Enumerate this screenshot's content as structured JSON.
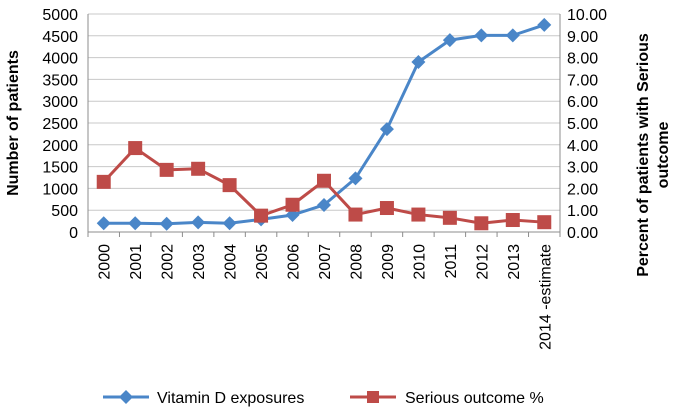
{
  "chart_data": {
    "type": "line",
    "title": "",
    "categories": [
      "2000",
      "2001",
      "2002",
      "2003",
      "2004",
      "2005",
      "2006",
      "2007",
      "2008",
      "2009",
      "2010",
      "2011",
      "2012",
      "2013",
      "2014 -estimate"
    ],
    "series": [
      {
        "name": "Vitamin D exposures",
        "axis": "left",
        "color": "#4a86c8",
        "marker": "diamond",
        "values": [
          200,
          200,
          190,
          220,
          200,
          290,
          390,
          620,
          1230,
          2360,
          3900,
          4400,
          4510,
          4510,
          4750
        ]
      },
      {
        "name": "Serious outcome %",
        "axis": "right",
        "color": "#be4b48",
        "marker": "square",
        "values": [
          2.3,
          3.85,
          2.85,
          2.9,
          2.15,
          0.75,
          1.25,
          2.35,
          0.8,
          1.1,
          0.8,
          0.65,
          0.4,
          0.55,
          0.45
        ]
      }
    ],
    "y_left": {
      "label": "Number of patients",
      "ylim": [
        0,
        5000
      ],
      "ticks": [
        "0",
        "500",
        "1000",
        "1500",
        "2000",
        "2500",
        "3000",
        "3500",
        "4000",
        "4500",
        "5000"
      ]
    },
    "y_right": {
      "label_lines": [
        "Percent of patients with Serious",
        "outcome"
      ],
      "ylim": [
        0,
        10
      ],
      "ticks": [
        "0.00",
        "1.00",
        "2.00",
        "3.00",
        "4.00",
        "5.00",
        "6.00",
        "7.00",
        "8.00",
        "9.00",
        "10.00"
      ]
    },
    "grid": true,
    "legend": "bottom"
  }
}
